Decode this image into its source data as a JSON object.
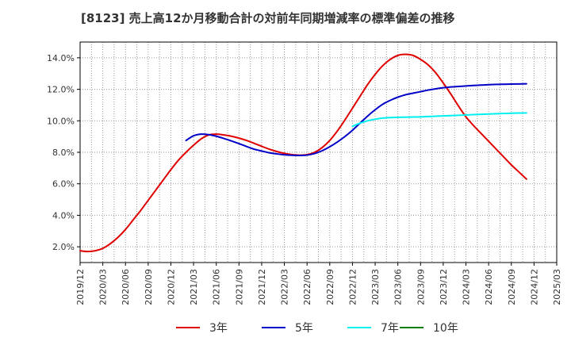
{
  "chart_data": {
    "type": "line",
    "title": "[8123]  売上高12か月移動合計の対前年同期増減率の標準偏差の推移",
    "xlabel": "",
    "ylabel": "",
    "ylim": [
      1.0,
      15.0
    ],
    "yticks": [
      2.0,
      4.0,
      6.0,
      8.0,
      10.0,
      12.0,
      14.0
    ],
    "ytick_labels": [
      "2.0%",
      "4.0%",
      "6.0%",
      "8.0%",
      "10.0%",
      "12.0%",
      "14.0%"
    ],
    "xtick_labels": [
      "2019/12",
      "2020/03",
      "2020/06",
      "2020/09",
      "2020/12",
      "2021/03",
      "2021/06",
      "2021/09",
      "2021/12",
      "2022/03",
      "2022/06",
      "2022/09",
      "2022/12",
      "2023/03",
      "2023/06",
      "2023/09",
      "2023/12",
      "2024/03",
      "2024/06",
      "2024/09",
      "2024/12",
      "2025/03"
    ],
    "grid": true,
    "legend_position": "bottom",
    "series": [
      {
        "name": "3年",
        "color": "#e00000",
        "points": [
          [
            "2019/12",
            1.75
          ],
          [
            "2020/01",
            1.7
          ],
          [
            "2020/02",
            1.75
          ],
          [
            "2020/03",
            1.9
          ],
          [
            "2020/04",
            2.2
          ],
          [
            "2020/05",
            2.6
          ],
          [
            "2020/06",
            3.1
          ],
          [
            "2020/07",
            3.7
          ],
          [
            "2020/08",
            4.3
          ],
          [
            "2020/09",
            4.95
          ],
          [
            "2020/10",
            5.6
          ],
          [
            "2020/11",
            6.25
          ],
          [
            "2020/12",
            6.9
          ],
          [
            "2021/01",
            7.5
          ],
          [
            "2021/02",
            8.0
          ],
          [
            "2021/03",
            8.45
          ],
          [
            "2021/04",
            8.85
          ],
          [
            "2021/05",
            9.1
          ],
          [
            "2021/06",
            9.15
          ],
          [
            "2021/07",
            9.1
          ],
          [
            "2021/08",
            9.02
          ],
          [
            "2021/09",
            8.9
          ],
          [
            "2021/10",
            8.75
          ],
          [
            "2021/11",
            8.57
          ],
          [
            "2021/12",
            8.38
          ],
          [
            "2022/01",
            8.2
          ],
          [
            "2022/02",
            8.05
          ],
          [
            "2022/03",
            7.93
          ],
          [
            "2022/04",
            7.85
          ],
          [
            "2022/05",
            7.82
          ],
          [
            "2022/06",
            7.85
          ],
          [
            "2022/07",
            8.0
          ],
          [
            "2022/08",
            8.3
          ],
          [
            "2022/09",
            8.75
          ],
          [
            "2022/10",
            9.35
          ],
          [
            "2022/11",
            10.05
          ],
          [
            "2022/12",
            10.8
          ],
          [
            "2023/01",
            11.55
          ],
          [
            "2023/02",
            12.3
          ],
          [
            "2023/03",
            12.95
          ],
          [
            "2023/04",
            13.5
          ],
          [
            "2023/05",
            13.9
          ],
          [
            "2023/06",
            14.15
          ],
          [
            "2023/07",
            14.22
          ],
          [
            "2023/08",
            14.15
          ],
          [
            "2023/09",
            13.9
          ],
          [
            "2023/10",
            13.55
          ],
          [
            "2023/11",
            13.05
          ],
          [
            "2023/12",
            12.4
          ],
          [
            "2024/01",
            11.7
          ],
          [
            "2024/02",
            10.95
          ],
          [
            "2024/03",
            10.25
          ],
          [
            "2024/04",
            9.7
          ],
          [
            "2024/05",
            9.2
          ],
          [
            "2024/06",
            8.7
          ],
          [
            "2024/07",
            8.2
          ],
          [
            "2024/08",
            7.7
          ],
          [
            "2024/09",
            7.2
          ],
          [
            "2024/10",
            6.75
          ],
          [
            "2024/11",
            6.3
          ]
        ]
      },
      {
        "name": "5年",
        "color": "#0000c8",
        "points": [
          [
            "2021/02",
            8.75
          ],
          [
            "2021/03",
            9.05
          ],
          [
            "2021/04",
            9.15
          ],
          [
            "2021/05",
            9.12
          ],
          [
            "2021/06",
            9.02
          ],
          [
            "2021/07",
            8.88
          ],
          [
            "2021/08",
            8.72
          ],
          [
            "2021/09",
            8.55
          ],
          [
            "2021/10",
            8.37
          ],
          [
            "2021/11",
            8.2
          ],
          [
            "2021/12",
            8.08
          ],
          [
            "2022/01",
            7.97
          ],
          [
            "2022/02",
            7.9
          ],
          [
            "2022/03",
            7.84
          ],
          [
            "2022/04",
            7.81
          ],
          [
            "2022/05",
            7.8
          ],
          [
            "2022/06",
            7.82
          ],
          [
            "2022/07",
            7.92
          ],
          [
            "2022/08",
            8.1
          ],
          [
            "2022/09",
            8.35
          ],
          [
            "2022/10",
            8.65
          ],
          [
            "2022/11",
            9.0
          ],
          [
            "2022/12",
            9.4
          ],
          [
            "2023/01",
            9.85
          ],
          [
            "2023/02",
            10.3
          ],
          [
            "2023/03",
            10.7
          ],
          [
            "2023/04",
            11.05
          ],
          [
            "2023/05",
            11.3
          ],
          [
            "2023/06",
            11.5
          ],
          [
            "2023/07",
            11.65
          ],
          [
            "2023/08",
            11.75
          ],
          [
            "2023/09",
            11.85
          ],
          [
            "2023/10",
            11.95
          ],
          [
            "2023/11",
            12.03
          ],
          [
            "2023/12",
            12.1
          ],
          [
            "2024/01",
            12.15
          ],
          [
            "2024/02",
            12.18
          ],
          [
            "2024/03",
            12.21
          ],
          [
            "2024/04",
            12.24
          ],
          [
            "2024/05",
            12.27
          ],
          [
            "2024/06",
            12.29
          ],
          [
            "2024/07",
            12.31
          ],
          [
            "2024/08",
            12.32
          ],
          [
            "2024/09",
            12.33
          ],
          [
            "2024/10",
            12.34
          ],
          [
            "2024/11",
            12.35
          ]
        ]
      },
      {
        "name": "7年",
        "color": "#00f0f0",
        "points": [
          [
            "2022/12",
            9.65
          ],
          [
            "2023/01",
            9.85
          ],
          [
            "2023/02",
            10.0
          ],
          [
            "2023/03",
            10.1
          ],
          [
            "2023/04",
            10.17
          ],
          [
            "2023/05",
            10.2
          ],
          [
            "2023/06",
            10.22
          ],
          [
            "2023/07",
            10.23
          ],
          [
            "2023/08",
            10.24
          ],
          [
            "2023/09",
            10.25
          ],
          [
            "2023/10",
            10.27
          ],
          [
            "2023/11",
            10.29
          ],
          [
            "2023/12",
            10.31
          ],
          [
            "2024/01",
            10.33
          ],
          [
            "2024/02",
            10.35
          ],
          [
            "2024/03",
            10.37
          ],
          [
            "2024/04",
            10.39
          ],
          [
            "2024/05",
            10.41
          ],
          [
            "2024/06",
            10.43
          ],
          [
            "2024/07",
            10.45
          ],
          [
            "2024/08",
            10.47
          ],
          [
            "2024/09",
            10.48
          ],
          [
            "2024/10",
            10.49
          ],
          [
            "2024/11",
            10.5
          ]
        ]
      },
      {
        "name": "10年",
        "color": "#008000",
        "points": []
      }
    ]
  }
}
